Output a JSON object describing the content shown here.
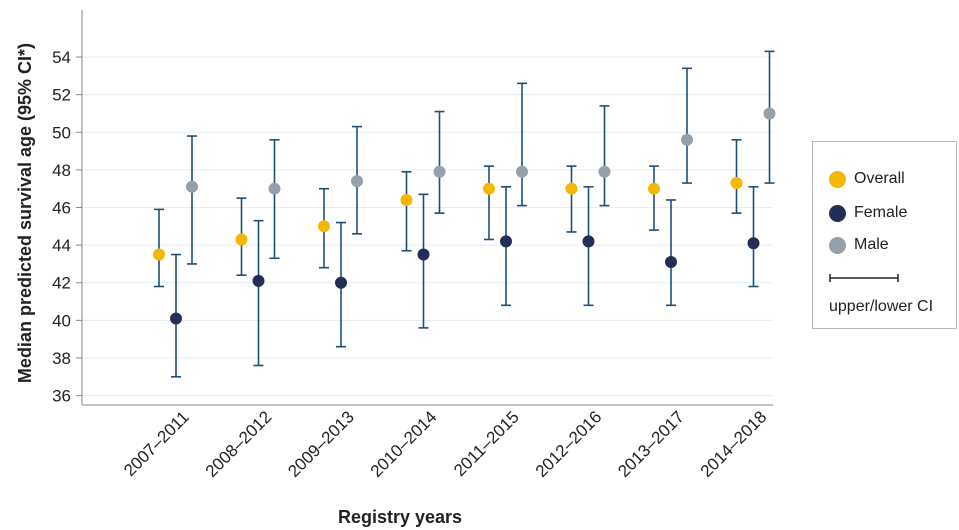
{
  "chart_data": {
    "type": "scatter",
    "xlabel": "Registry years",
    "ylabel": "Median predicted survival age (95% CI*)",
    "ylim": [
      35.5,
      56.5
    ],
    "yticks": [
      36,
      38,
      40,
      42,
      44,
      46,
      48,
      50,
      52,
      54
    ],
    "grid": true,
    "legend_position": "right",
    "categories": [
      "2007–2011",
      "2008–2012",
      "2009–2013",
      "2010–2014",
      "2011–2015",
      "2012–2016",
      "2013–2017",
      "2014–2018"
    ],
    "series": [
      {
        "name": "Overall",
        "color": "#f5b800",
        "values": [
          43.5,
          44.3,
          45.0,
          46.4,
          47.0,
          47.0,
          47.0,
          47.3
        ],
        "lower": [
          41.8,
          42.4,
          42.8,
          43.7,
          44.3,
          44.7,
          44.8,
          45.7
        ],
        "upper": [
          45.9,
          46.5,
          47.0,
          47.9,
          48.2,
          48.2,
          48.2,
          49.6
        ]
      },
      {
        "name": "Female",
        "color": "#232d57",
        "values": [
          40.1,
          42.1,
          42.0,
          43.5,
          44.2,
          44.2,
          43.1,
          44.1
        ],
        "lower": [
          37.0,
          37.6,
          38.6,
          39.6,
          40.8,
          40.8,
          40.8,
          41.8
        ],
        "upper": [
          43.5,
          45.3,
          45.2,
          46.7,
          47.1,
          47.1,
          46.4,
          47.1
        ]
      },
      {
        "name": "Male",
        "color": "#96a0aa",
        "values": [
          47.1,
          47.0,
          47.4,
          47.9,
          47.9,
          47.9,
          49.6,
          51.0
        ],
        "lower": [
          43.0,
          43.3,
          44.6,
          45.7,
          46.1,
          46.1,
          47.3,
          47.3
        ],
        "upper": [
          49.8,
          49.6,
          50.3,
          51.1,
          52.6,
          51.4,
          53.4,
          54.3
        ]
      }
    ],
    "ci_color": "#1f4e79",
    "ci_legend_label": "upper/lower CI"
  }
}
